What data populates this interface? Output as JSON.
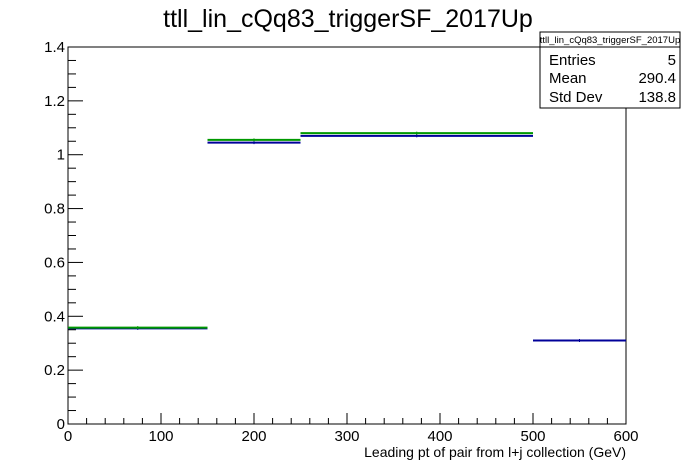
{
  "chart_data": {
    "type": "histogram",
    "title": "ttll_lin_cQq83_triggerSF_2017Up",
    "xlabel": "Leading pt of pair from l+j collection (GeV)",
    "ylabel": "",
    "xlim": [
      0,
      600
    ],
    "ylim": [
      0,
      1.4
    ],
    "xticks": [
      0,
      100,
      200,
      300,
      400,
      500,
      600
    ],
    "xtick_labels": [
      "0",
      "100",
      "200",
      "300",
      "400",
      "500",
      "600"
    ],
    "yticks": [
      0,
      0.2,
      0.4,
      0.6,
      0.8,
      1,
      1.2,
      1.4
    ],
    "ytick_labels": [
      "0",
      "0.2",
      "0.4",
      "0.6",
      "0.8",
      "1",
      "1.2",
      "1.4"
    ],
    "grid": false,
    "legend": "none",
    "stats_box": {
      "title": "ttll_lin_cQq83_triggerSF_2017Up",
      "rows": [
        {
          "label": "Entries",
          "value": "5"
        },
        {
          "label": "Mean",
          "value": "290.4"
        },
        {
          "label": "Std Dev",
          "value": "138.8"
        }
      ]
    },
    "series": [
      {
        "color": "#000099",
        "bins": [
          {
            "x0": 0,
            "x1": 150,
            "y": 0.355
          },
          {
            "x0": 150,
            "x1": 250,
            "y": 1.045
          },
          {
            "x0": 250,
            "x1": 500,
            "y": 1.07
          },
          {
            "x0": 500,
            "x1": 600,
            "y": 0.31
          }
        ]
      },
      {
        "color": "#009900",
        "bins": [
          {
            "x0": 0,
            "x1": 150,
            "y": 0.358
          },
          {
            "x0": 150,
            "x1": 250,
            "y": 1.055
          },
          {
            "x0": 250,
            "x1": 500,
            "y": 1.08
          }
        ]
      }
    ]
  }
}
